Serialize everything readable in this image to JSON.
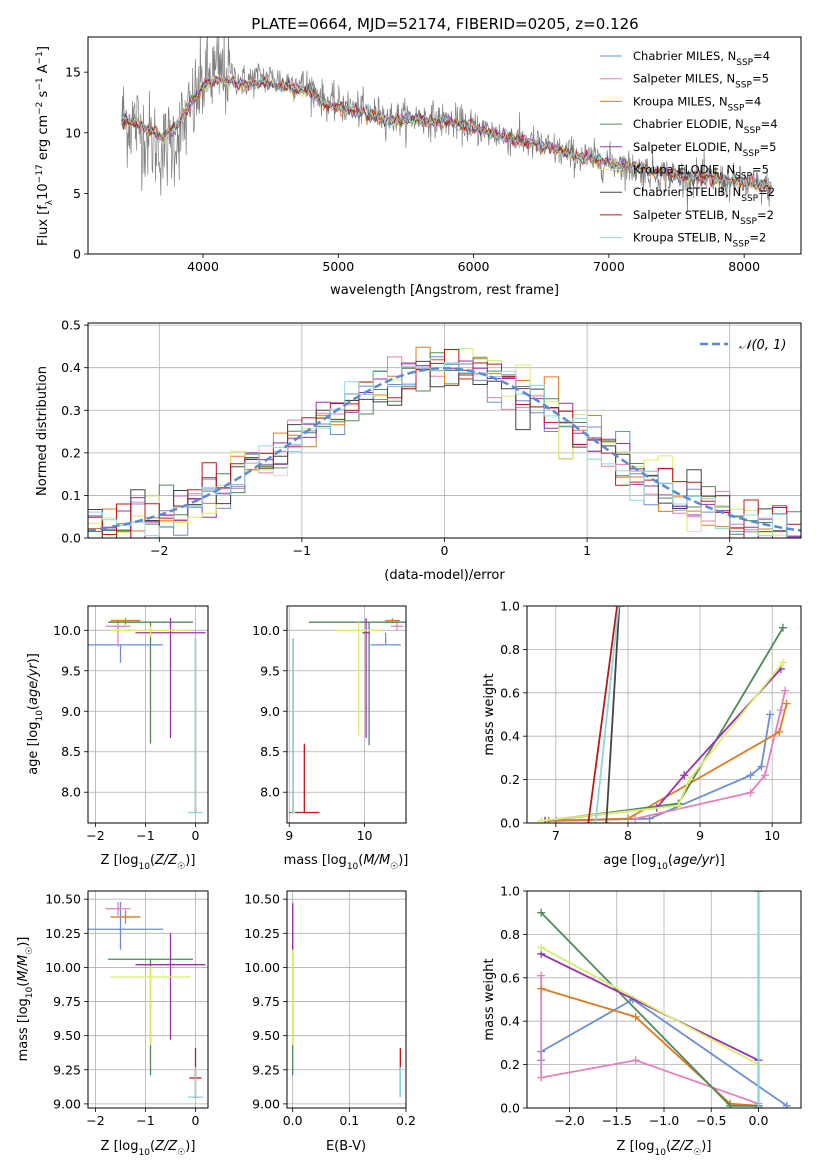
{
  "title": "PLATE=0664, MJD=52174, FIBERID=0205, z=0.126",
  "colors": {
    "Chabrier MILES": "#6a8fd8",
    "Salpeter MILES": "#e77fbd",
    "Kroupa MILES": "#e07b20",
    "Chabrier ELODIE": "#4f8a5b",
    "Salpeter ELODIE": "#9b2fb0",
    "Kroupa ELODIE": "#d7ef6b",
    "Chabrier STELIB": "#444444",
    "Salpeter STELIB": "#c01818",
    "Kroupa STELIB": "#8fd7df",
    "data": "#808080",
    "normal": "#5b8ad6"
  },
  "chart_data": [
    {
      "id": "spectrum",
      "type": "line",
      "xlabel": "wavelength [Angstrom, rest frame]",
      "ylabel": "Flux [f_λ 10^-17 erg cm^-2 s^-1 A^-1]",
      "xlim": [
        3150,
        8420
      ],
      "ylim": [
        0,
        17.9
      ],
      "xticks": [
        4000,
        5000,
        6000,
        7000,
        8000
      ],
      "yticks": [
        0,
        5,
        10,
        15
      ],
      "grid": false,
      "legend": "top-right",
      "legend_entries": [
        "Chabrier MILES, N_SSP=4",
        "Salpeter MILES, N_SSP=5",
        "Kroupa MILES, N_SSP=4",
        "Chabrier ELODIE, N_SSP=4",
        "Salpeter ELODIE, N_SSP=5",
        "Kroupa ELODIE, N_SSP=5",
        "Chabrier STELIB, N_SSP=2",
        "Salpeter STELIB, N_SSP=2",
        "Kroupa STELIB, N_SSP=2"
      ],
      "data_x": [
        3400,
        3500,
        3600,
        3700,
        3800,
        3900,
        4000,
        4100,
        4200,
        4300,
        4400,
        4500,
        4600,
        4700,
        4800,
        4900,
        5000,
        5200,
        5400,
        5600,
        5800,
        6000,
        6200,
        6400,
        6600,
        6800,
        7000,
        7200,
        7400,
        7600,
        7800,
        8000,
        8200
      ],
      "data_y": [
        11.2,
        10.8,
        9.6,
        8.5,
        9.6,
        11.5,
        14.2,
        15.0,
        14.8,
        14.2,
        14.6,
        14.5,
        14.2,
        14.1,
        13.8,
        12.6,
        12.3,
        11.8,
        11.2,
        11.2,
        11.0,
        10.5,
        9.8,
        9.2,
        8.6,
        8.0,
        7.6,
        7.0,
        6.6,
        6.3,
        6.1,
        5.7,
        5.4
      ],
      "model_y": [
        11.1,
        10.9,
        10.2,
        9.6,
        10.6,
        12.2,
        13.9,
        14.4,
        14.3,
        13.9,
        14.2,
        14.1,
        13.8,
        13.6,
        13.3,
        12.3,
        12.1,
        11.6,
        11.0,
        11.1,
        10.9,
        10.3,
        9.8,
        9.2,
        8.6,
        8.0,
        7.6,
        7.1,
        6.7,
        6.4,
        6.2,
        5.9,
        5.6
      ],
      "data_noise": 1.2
    },
    {
      "id": "residuals",
      "type": "line",
      "xlabel": "(data-model)/error",
      "ylabel": "Normed distribution",
      "xlim": [
        -2.5,
        2.5
      ],
      "ylim": [
        0,
        0.505
      ],
      "xticks": [
        -2,
        -1,
        0,
        1,
        2
      ],
      "yticks": [
        0.0,
        0.1,
        0.2,
        0.3,
        0.4,
        0.5
      ],
      "grid": true,
      "legend": "top-right",
      "normal_label": "N(0,1)",
      "bin_width": 0.1,
      "jitter": 0.03
    },
    {
      "id": "age_vs_Z",
      "type": "scatter",
      "xlabel": "Z [log10(Z/Z☉)]",
      "ylabel": "age [log10(age/yr)]",
      "xlim": [
        -2.15,
        0.25
      ],
      "ylim": [
        7.62,
        10.3
      ],
      "xticks": [
        -2,
        -1,
        0
      ],
      "yticks": [
        8.0,
        8.5,
        9.0,
        9.5,
        10.0
      ],
      "grid": true,
      "points": [
        {
          "model": "Chabrier MILES",
          "x": -1.5,
          "xerr": 0.85,
          "y": 9.82,
          "yerr_lo": 0.22,
          "yerr_hi": 0.0
        },
        {
          "model": "Salpeter MILES",
          "x": -1.55,
          "xerr": 0.25,
          "y": 10.05,
          "yerr_lo": 0.25,
          "yerr_hi": 0.08
        },
        {
          "model": "Kroupa MILES",
          "x": -1.4,
          "xerr": 0.3,
          "y": 10.12,
          "yerr_lo": 0.05,
          "yerr_hi": 0.03
        },
        {
          "model": "Chabrier ELODIE",
          "x": -0.9,
          "xerr": 0.85,
          "y": 10.1,
          "yerr_lo": 1.5,
          "yerr_hi": 0.0
        },
        {
          "model": "Salpeter ELODIE",
          "x": -0.5,
          "xerr": 0.7,
          "y": 9.97,
          "yerr_lo": 1.3,
          "yerr_hi": 0.18
        },
        {
          "model": "Kroupa ELODIE",
          "x": -0.9,
          "xerr": 0.8,
          "y": 10.0,
          "yerr_lo": 0.08,
          "yerr_hi": 0.05
        },
        {
          "model": "Chabrier STELIB",
          "x": 0.0,
          "xerr": 0.02,
          "y": 7.75,
          "yerr_lo": 0.0,
          "yerr_hi": 2.15
        },
        {
          "model": "Salpeter STELIB",
          "x": 0.0,
          "xerr": 0.02,
          "y": 7.75,
          "yerr_lo": 0.0,
          "yerr_hi": 0.05
        },
        {
          "model": "Kroupa STELIB",
          "x": 0.0,
          "xerr": 0.15,
          "y": 7.75,
          "yerr_lo": 0.0,
          "yerr_hi": 2.2
        }
      ]
    },
    {
      "id": "age_vs_mass",
      "type": "scatter",
      "xlabel": "mass [log10(M/M☉)]",
      "ylabel": "",
      "xlim": [
        8.97,
        10.55
      ],
      "ylim": [
        7.62,
        10.3
      ],
      "xticks": [
        9,
        10
      ],
      "yticks": [
        8.0,
        8.5,
        9.0,
        9.5,
        10.0
      ],
      "grid": true,
      "points": [
        {
          "model": "Chabrier MILES",
          "x": 10.28,
          "xerr": 0.2,
          "y": 9.82,
          "yerr_lo": 0.0,
          "yerr_hi": 0.15
        },
        {
          "model": "Salpeter MILES",
          "x": 10.43,
          "xerr": 0.08,
          "y": 10.05,
          "yerr_lo": 0.05,
          "yerr_hi": 0.05
        },
        {
          "model": "Kroupa MILES",
          "x": 10.37,
          "xerr": 0.1,
          "y": 10.12,
          "yerr_lo": 0.03,
          "yerr_hi": 0.03
        },
        {
          "model": "Chabrier ELODIE",
          "x": 10.06,
          "xerr": 0.8,
          "y": 10.1,
          "yerr_lo": 1.52,
          "yerr_hi": 0.0
        },
        {
          "model": "Salpeter ELODIE",
          "x": 10.02,
          "xerr": 0.05,
          "y": 9.97,
          "yerr_lo": 1.3,
          "yerr_hi": 0.18
        },
        {
          "model": "Kroupa ELODIE",
          "x": 9.92,
          "xerr": 0.3,
          "y": 10.0,
          "yerr_lo": 1.3,
          "yerr_hi": 0.1
        },
        {
          "model": "Chabrier STELIB",
          "x": 9.05,
          "xerr": 0.02,
          "y": 7.75,
          "yerr_lo": 0.0,
          "yerr_hi": 2.15
        },
        {
          "model": "Salpeter STELIB",
          "x": 9.2,
          "xerr": 0.2,
          "y": 7.75,
          "yerr_lo": 0.0,
          "yerr_hi": 0.85
        },
        {
          "model": "Kroupa STELIB",
          "x": 9.05,
          "xerr": 0.03,
          "y": 7.75,
          "yerr_lo": 0.0,
          "yerr_hi": 2.15
        }
      ]
    },
    {
      "id": "mass_weight_vs_age",
      "type": "line",
      "xlabel": "age [log10(age/yr)]",
      "ylabel": "mass weight",
      "xlim": [
        6.6,
        10.4
      ],
      "ylim": [
        0.0,
        1.0
      ],
      "xticks": [
        7,
        8,
        9,
        10
      ],
      "yticks": [
        0.0,
        0.2,
        0.4,
        0.6,
        0.8,
        1.0
      ],
      "grid": true,
      "series": [
        {
          "model": "Chabrier MILES",
          "x": [
            7.0,
            8.3,
            9.7,
            9.85,
            9.97
          ],
          "y": [
            0.01,
            0.02,
            0.22,
            0.26,
            0.5
          ]
        },
        {
          "model": "Salpeter MILES",
          "x": [
            6.9,
            8.1,
            9.7,
            9.9,
            10.12,
            10.18
          ],
          "y": [
            0.01,
            0.02,
            0.14,
            0.22,
            0.52,
            0.61
          ]
        },
        {
          "model": "Kroupa MILES",
          "x": [
            6.9,
            8.0,
            10.1,
            10.2
          ],
          "y": [
            0.01,
            0.02,
            0.42,
            0.55
          ]
        },
        {
          "model": "Chabrier ELODIE",
          "x": [
            6.85,
            8.7,
            10.15
          ],
          "y": [
            0.01,
            0.09,
            0.9
          ]
        },
        {
          "model": "Salpeter ELODIE",
          "x": [
            6.85,
            8.4,
            8.78,
            10.12
          ],
          "y": [
            0.01,
            0.07,
            0.22,
            0.71
          ]
        },
        {
          "model": "Kroupa ELODIE",
          "x": [
            6.8,
            8.7,
            8.85,
            10.15
          ],
          "y": [
            0.01,
            0.08,
            0.2,
            0.74
          ]
        },
        {
          "model": "Chabrier STELIB",
          "x": [
            7.7,
            7.88
          ],
          "y": [
            0.0,
            1.0
          ]
        },
        {
          "model": "Salpeter STELIB",
          "x": [
            7.45,
            7.85
          ],
          "y": [
            0.0,
            1.0
          ]
        },
        {
          "model": "Kroupa STELIB",
          "x": [
            7.55,
            7.87
          ],
          "y": [
            0.0,
            1.0
          ]
        }
      ]
    },
    {
      "id": "mass_vs_Z",
      "type": "scatter",
      "xlabel": "Z [log10(Z/Z☉)]",
      "ylabel": "mass [log10(M/M☉)]",
      "xlim": [
        -2.15,
        0.25
      ],
      "ylim": [
        8.97,
        10.56
      ],
      "xticks": [
        -2,
        -1,
        0
      ],
      "yticks": [
        9.0,
        9.25,
        9.5,
        9.75,
        10.0,
        10.25,
        10.5
      ],
      "grid": true,
      "points": [
        {
          "model": "Chabrier MILES",
          "x": -1.5,
          "xerr": 0.85,
          "y": 10.28,
          "yerr_lo": 0.15,
          "yerr_hi": 0.2
        },
        {
          "model": "Salpeter MILES",
          "x": -1.55,
          "xerr": 0.25,
          "y": 10.43,
          "yerr_lo": 0.05,
          "yerr_hi": 0.05
        },
        {
          "model": "Kroupa MILES",
          "x": -1.4,
          "xerr": 0.3,
          "y": 10.37,
          "yerr_lo": 0.05,
          "yerr_hi": 0.05
        },
        {
          "model": "Chabrier ELODIE",
          "x": -0.9,
          "xerr": 0.85,
          "y": 10.06,
          "yerr_lo": 0.85,
          "yerr_hi": 0.0
        },
        {
          "model": "Salpeter ELODIE",
          "x": -0.5,
          "xerr": 0.7,
          "y": 10.02,
          "yerr_lo": 0.55,
          "yerr_hi": 0.23
        },
        {
          "model": "Kroupa ELODIE",
          "x": -0.9,
          "xerr": 0.8,
          "y": 9.93,
          "yerr_lo": 0.5,
          "yerr_hi": 0.08
        },
        {
          "model": "Chabrier STELIB",
          "x": 0.0,
          "xerr": 0.05,
          "y": 9.05,
          "yerr_lo": 0.0,
          "yerr_hi": 0.2
        },
        {
          "model": "Salpeter STELIB",
          "x": 0.0,
          "xerr": 0.12,
          "y": 9.19,
          "yerr_lo": 0.0,
          "yerr_hi": 0.22
        },
        {
          "model": "Kroupa STELIB",
          "x": 0.0,
          "xerr": 0.15,
          "y": 9.05,
          "yerr_lo": 0.0,
          "yerr_hi": 0.22
        }
      ]
    },
    {
      "id": "mass_vs_ebv",
      "type": "scatter",
      "xlabel": "E(B-V)",
      "ylabel": "",
      "xlim": [
        -0.01,
        0.2
      ],
      "ylim": [
        8.97,
        10.56
      ],
      "xticks": [
        0.0,
        0.1,
        0.2
      ],
      "yticks": [
        9.0,
        9.25,
        9.5,
        9.75,
        10.0,
        10.25,
        10.5
      ],
      "grid": true,
      "points": [
        {
          "model": "Chabrier MILES",
          "x": 0.0,
          "y": 10.28,
          "yerr_lo": 0.1,
          "yerr_hi": 0.15
        },
        {
          "model": "Salpeter MILES",
          "x": 0.0,
          "y": 10.43,
          "yerr_lo": 0.1,
          "yerr_hi": 0.05
        },
        {
          "model": "Kroupa MILES",
          "x": 0.0,
          "y": 10.37,
          "yerr_lo": 0.1,
          "yerr_hi": 0.05
        },
        {
          "model": "Chabrier ELODIE",
          "x": 0.0,
          "y": 10.06,
          "yerr_lo": 0.85,
          "yerr_hi": 0.2
        },
        {
          "model": "Salpeter ELODIE",
          "x": 0.0,
          "y": 10.02,
          "yerr_lo": 0.55,
          "yerr_hi": 0.45
        },
        {
          "model": "Kroupa ELODIE",
          "x": 0.0,
          "y": 9.93,
          "yerr_lo": 0.5,
          "yerr_hi": 0.2
        },
        {
          "model": "Chabrier STELIB",
          "x": 0.19,
          "y": 9.05,
          "yerr_lo": 0.0,
          "yerr_hi": 0.22
        },
        {
          "model": "Salpeter STELIB",
          "x": 0.19,
          "y": 9.19,
          "yerr_lo": 0.0,
          "yerr_hi": 0.22
        },
        {
          "model": "Kroupa STELIB",
          "x": 0.19,
          "y": 9.05,
          "yerr_lo": 0.0,
          "yerr_hi": 0.22
        }
      ]
    },
    {
      "id": "mass_weight_vs_Z",
      "type": "line",
      "xlabel": "Z [log10(Z/Z☉)]",
      "ylabel": "mass weight",
      "xlim": [
        -2.45,
        0.45
      ],
      "ylim": [
        0.0,
        1.0
      ],
      "xticks": [
        -2.0,
        -1.5,
        -1.0,
        -0.5,
        0.0
      ],
      "yticks": [
        0.0,
        0.2,
        0.4,
        0.6,
        0.8,
        1.0
      ],
      "grid": true,
      "series": [
        {
          "model": "Chabrier MILES",
          "x": [
            -2.3,
            -2.3,
            -1.33,
            0.3
          ],
          "y": [
            0.22,
            0.26,
            0.5,
            0.01
          ]
        },
        {
          "model": "Salpeter MILES",
          "x": [
            -2.3,
            -2.3,
            -1.3,
            0.0
          ],
          "y": [
            0.61,
            0.14,
            0.22,
            0.02
          ]
        },
        {
          "model": "Kroupa MILES",
          "x": [
            -2.3,
            -1.3,
            -0.3,
            0.0
          ],
          "y": [
            0.55,
            0.42,
            0.02,
            0.01
          ]
        },
        {
          "model": "Chabrier ELODIE",
          "x": [
            -2.3,
            -0.3,
            0.0
          ],
          "y": [
            0.9,
            0.01,
            0.01
          ]
        },
        {
          "model": "Salpeter ELODIE",
          "x": [
            -2.3,
            0.0,
            0.0
          ],
          "y": [
            0.71,
            0.22,
            0.0
          ]
        },
        {
          "model": "Kroupa ELODIE",
          "x": [
            -2.3,
            0.0,
            0.0
          ],
          "y": [
            0.74,
            0.2,
            0.0
          ]
        },
        {
          "model": "Chabrier STELIB",
          "x": [
            0.0,
            0.0
          ],
          "y": [
            0.0,
            1.0
          ]
        },
        {
          "model": "Salpeter STELIB",
          "x": [
            0.0,
            0.0
          ],
          "y": [
            0.0,
            1.0
          ]
        },
        {
          "model": "Kroupa STELIB",
          "x": [
            0.0,
            0.0
          ],
          "y": [
            0.0,
            1.0
          ]
        }
      ]
    }
  ]
}
